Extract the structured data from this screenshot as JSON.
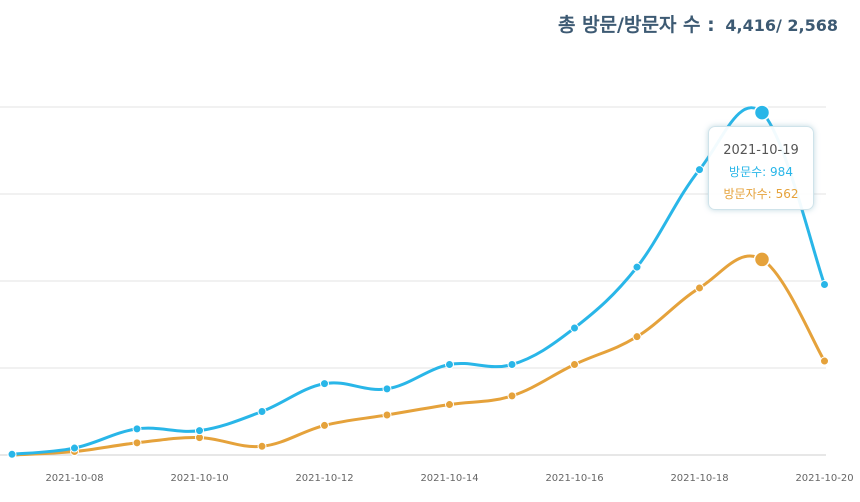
{
  "header": {
    "label": "총 방문/방문자 수 :",
    "totals": "4,416/ 2,568"
  },
  "chart_data": {
    "type": "line",
    "x": [
      "2021-10-07",
      "2021-10-08",
      "2021-10-09",
      "2021-10-10",
      "2021-10-11",
      "2021-10-12",
      "2021-10-13",
      "2021-10-14",
      "2021-10-15",
      "2021-10-16",
      "2021-10-17",
      "2021-10-18",
      "2021-10-19",
      "2021-10-20"
    ],
    "tick_labels": [
      "2021-10-08",
      "2021-10-10",
      "2021-10-12",
      "2021-10-14",
      "2021-10-16",
      "2021-10-18",
      "2021-10-20"
    ],
    "ylim": [
      0,
      1000
    ],
    "grid": true,
    "series": [
      {
        "key": "visits",
        "color": "#29b6e8",
        "values": [
          2,
          20,
          75,
          70,
          125,
          205,
          190,
          260,
          260,
          365,
          540,
          820,
          984,
          490
        ]
      },
      {
        "key": "visitors",
        "color": "#e5a23b",
        "values": [
          0,
          10,
          35,
          50,
          25,
          85,
          115,
          145,
          170,
          260,
          340,
          480,
          562,
          270
        ]
      }
    ],
    "highlight": {
      "date": "2021-10-19",
      "visits_label": "방문수:",
      "visits_value": "984",
      "visitors_label": "방문자수:",
      "visitors_value": "562"
    }
  }
}
